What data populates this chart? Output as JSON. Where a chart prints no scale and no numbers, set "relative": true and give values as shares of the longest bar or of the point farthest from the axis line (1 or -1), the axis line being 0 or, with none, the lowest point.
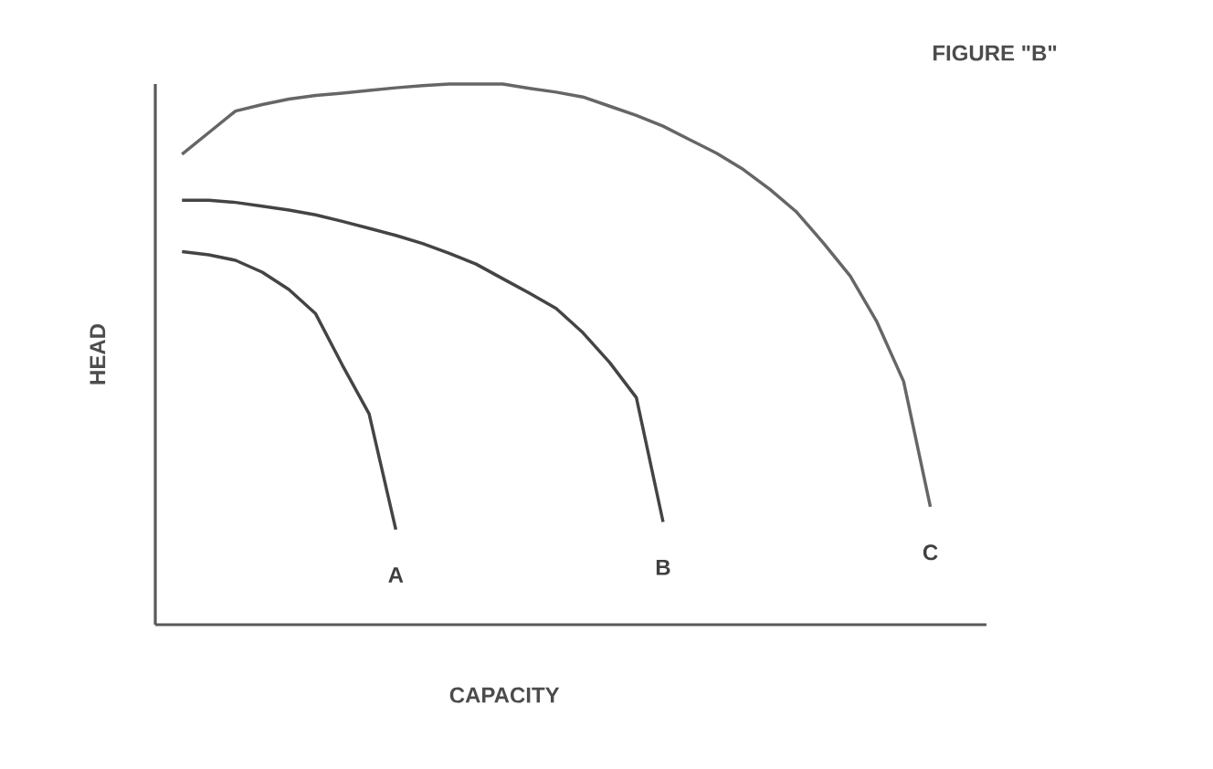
{
  "chart_data": {
    "type": "line",
    "title": "FIGURE \"B\"",
    "xlabel": "CAPACITY",
    "ylabel": "HEAD",
    "relative": true,
    "tick_labels": false,
    "categories": [
      null,
      null,
      null,
      null,
      null,
      null,
      null,
      null,
      null,
      null,
      null,
      null,
      null,
      null,
      null,
      null,
      null,
      null,
      null,
      null,
      null,
      null,
      null,
      null,
      null,
      null,
      null,
      null,
      null
    ],
    "series": [
      {
        "name": "A",
        "color": "#444444",
        "values": [
          0.69,
          0.684,
          0.674,
          0.652,
          0.62,
          0.575,
          0.48,
          0.39,
          0.176,
          null,
          null,
          null,
          null,
          null,
          null,
          null,
          null,
          null,
          null,
          null,
          null,
          null,
          null,
          null,
          null,
          null,
          null,
          null,
          null
        ]
      },
      {
        "name": "B",
        "color": "#444444",
        "values": [
          0.785,
          0.785,
          0.781,
          0.774,
          0.767,
          0.758,
          0.746,
          0.733,
          0.72,
          0.705,
          0.687,
          0.667,
          0.64,
          0.613,
          0.585,
          0.54,
          0.485,
          0.42,
          0.19,
          null,
          null,
          null,
          null,
          null,
          null,
          null,
          null,
          null,
          null
        ]
      },
      {
        "name": "C",
        "color": "#666666",
        "values": [
          0.87,
          0.91,
          0.95,
          0.962,
          0.972,
          0.979,
          0.983,
          0.988,
          0.993,
          0.997,
          1,
          1,
          1,
          0.992,
          0.985,
          0.976,
          0.959,
          0.942,
          0.922,
          0.897,
          0.872,
          0.842,
          0.805,
          0.763,
          0.706,
          0.645,
          0.56,
          0.45,
          0.218
        ]
      }
    ]
  }
}
